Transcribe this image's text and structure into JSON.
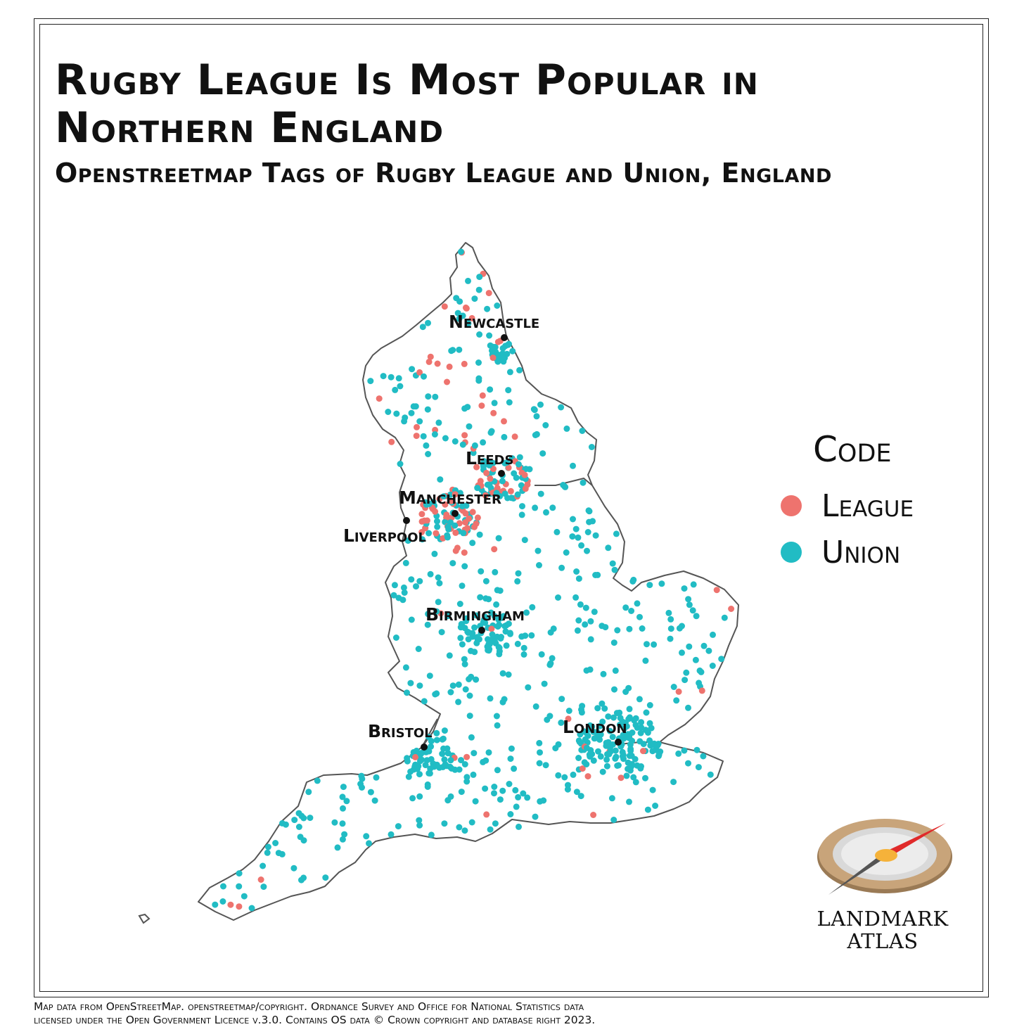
{
  "title": "Rugby League Is Most Popular in Northern England",
  "subtitle": "Openstreetmap Tags of Rugby League and Union, England",
  "legend": {
    "title": "Code",
    "items": [
      {
        "label": "League",
        "color": "#ee736e"
      },
      {
        "label": "Union",
        "color": "#21bcc4"
      }
    ]
  },
  "cities": [
    "Newcastle",
    "Leeds",
    "Manchester",
    "Liverpool",
    "Birmingham",
    "Bristol",
    "London"
  ],
  "map_colors": {
    "outline": "#555555",
    "city_marker": "#111111"
  },
  "logo": {
    "line1": "LANDMARK",
    "line2": "ATLAS"
  },
  "credits": {
    "line1": "Map data from OpenStreetMap. openstreetmap/copyright. Ordnance Survey and Office for National Statistics data",
    "line2": "licensed under the Open Government Licence v.3.0. Contains OS data © Crown copyright and database right 2023."
  }
}
